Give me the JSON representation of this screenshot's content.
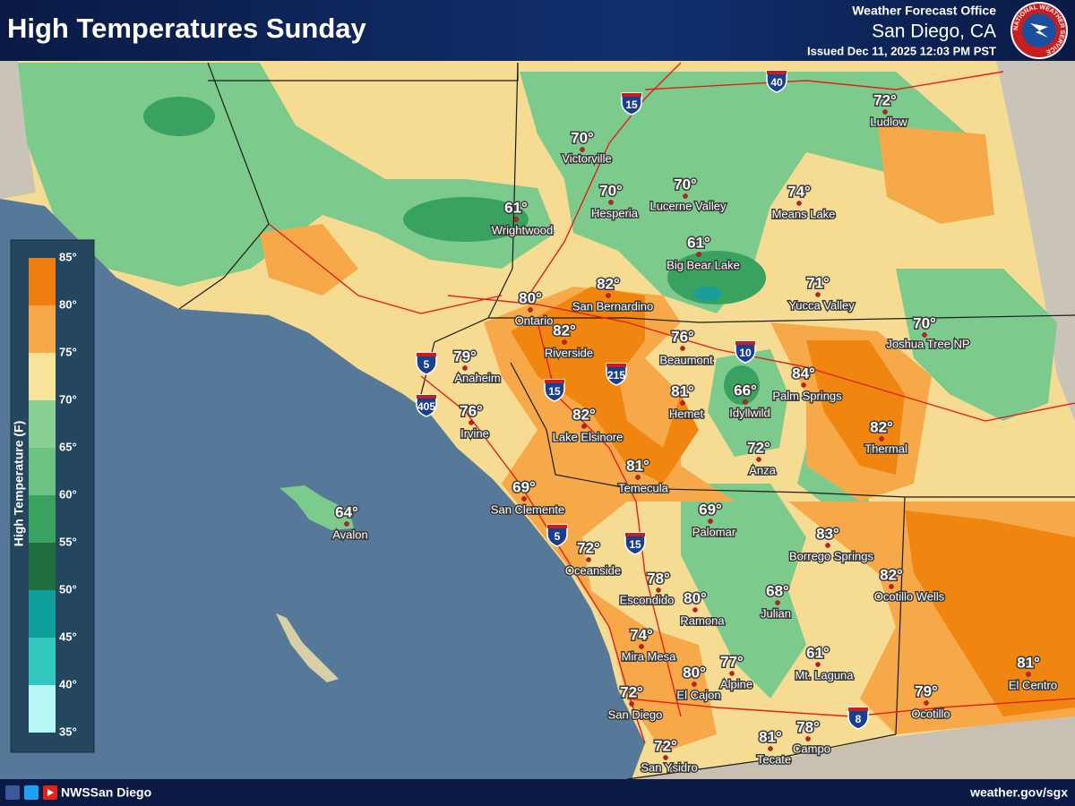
{
  "header": {
    "title": "High Temperatures Sunday",
    "office": "Weather Forecast Office",
    "location": "San Diego, CA",
    "issued": "Issued Dec 11, 2025 12:03 PM PST",
    "logo_text": "NATIONAL WEATHER SERVICE"
  },
  "legend": {
    "title": "High Temperature (F)",
    "labels": [
      "85°",
      "80°",
      "75°",
      "70°",
      "65°",
      "60°",
      "55°",
      "50°",
      "45°",
      "40°",
      "35°"
    ]
  },
  "cities": [
    {
      "name": "Victorville",
      "temp": "70°"
    },
    {
      "name": "Hesperia",
      "temp": "70°"
    },
    {
      "name": "Lucerne Valley",
      "temp": "70°"
    },
    {
      "name": "Means Lake",
      "temp": "74°"
    },
    {
      "name": "Ludlow",
      "temp": "72°"
    },
    {
      "name": "Wrightwood",
      "temp": "61°"
    },
    {
      "name": "Big Bear Lake",
      "temp": "61°"
    },
    {
      "name": "Yucca Valley",
      "temp": "71°"
    },
    {
      "name": "Joshua Tree NP",
      "temp": "70°"
    },
    {
      "name": "Ontario",
      "temp": "80°"
    },
    {
      "name": "San Bernardino",
      "temp": "82°"
    },
    {
      "name": "Riverside",
      "temp": "82°"
    },
    {
      "name": "Beaumont",
      "temp": "76°"
    },
    {
      "name": "Palm Springs",
      "temp": "84°"
    },
    {
      "name": "Anaheim",
      "temp": "79°"
    },
    {
      "name": "Hemet",
      "temp": "81°"
    },
    {
      "name": "Idyllwild",
      "temp": "66°"
    },
    {
      "name": "Irvine",
      "temp": "76°"
    },
    {
      "name": "Lake Elsinore",
      "temp": "82°"
    },
    {
      "name": "Thermal",
      "temp": "82°"
    },
    {
      "name": "Anza",
      "temp": "72°"
    },
    {
      "name": "Temecula",
      "temp": "81°"
    },
    {
      "name": "San Clemente",
      "temp": "69°"
    },
    {
      "name": "Avalon",
      "temp": "64°"
    },
    {
      "name": "Palomar",
      "temp": "69°"
    },
    {
      "name": "Borrego Springs",
      "temp": "83°"
    },
    {
      "name": "Ocotillo Wells",
      "temp": "82°"
    },
    {
      "name": "Oceanside",
      "temp": "72°"
    },
    {
      "name": "Escondido",
      "temp": "78°"
    },
    {
      "name": "Ramona",
      "temp": "80°"
    },
    {
      "name": "Julian",
      "temp": "68°"
    },
    {
      "name": "Mira Mesa",
      "temp": "74°"
    },
    {
      "name": "Alpine",
      "temp": "77°"
    },
    {
      "name": "Mt. Laguna",
      "temp": "61°"
    },
    {
      "name": "El Cajon",
      "temp": "80°"
    },
    {
      "name": "El Centro",
      "temp": "81°"
    },
    {
      "name": "San Diego",
      "temp": "72°"
    },
    {
      "name": "Ocotillo",
      "temp": "79°"
    },
    {
      "name": "Campo",
      "temp": "78°"
    },
    {
      "name": "Tecate",
      "temp": "81°"
    },
    {
      "name": "San Ysidro",
      "temp": "72°"
    }
  ],
  "shields": [
    "40",
    "15",
    "10",
    "215",
    "5",
    "15",
    "405",
    "5",
    "15",
    "8"
  ],
  "footer": {
    "social": "NWSSan Diego",
    "url": "weather.gov/sgx"
  }
}
